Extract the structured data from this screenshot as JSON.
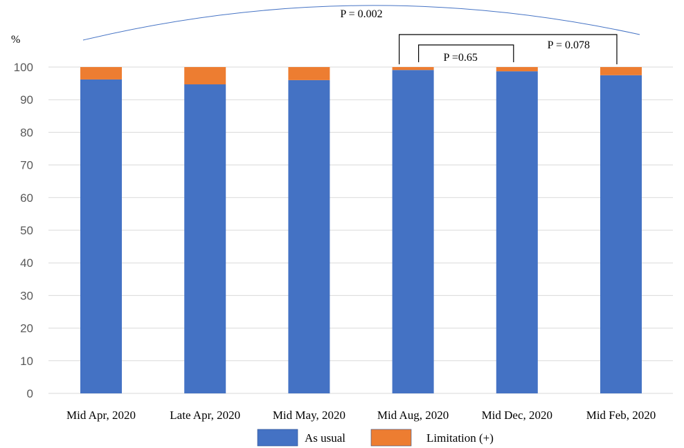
{
  "chart_data": {
    "type": "bar",
    "stacked": true,
    "title": "",
    "ylabel": "%",
    "xlabel": "",
    "ylim": [
      0,
      100
    ],
    "yticks": [
      0,
      10,
      20,
      30,
      40,
      50,
      60,
      70,
      80,
      90,
      100
    ],
    "grid": true,
    "legend_position": "bottom",
    "categories": [
      "Mid Apr, 2020",
      "Late Apr, 2020",
      "Mid May, 2020",
      "Mid Aug, 2020",
      "Mid Dec, 2020",
      "Mid Feb, 2020"
    ],
    "series": [
      {
        "name": "As usual",
        "color": "#4472C4",
        "values": [
          96.2,
          94.7,
          96.0,
          99.1,
          98.7,
          97.5
        ]
      },
      {
        "name": "Limitation (+)",
        "color": "#ED7D31",
        "values": [
          3.8,
          5.3,
          4.0,
          0.9,
          1.3,
          2.5
        ]
      }
    ],
    "annotations": [
      {
        "text": "P = 0.002",
        "type": "arc",
        "from": "Mid Apr, 2020",
        "to": "Mid Feb, 2020"
      },
      {
        "text": "P =0.65",
        "type": "bracket",
        "from": "Mid Aug, 2020",
        "to": "Mid Dec, 2020"
      },
      {
        "text": "P = 0.078",
        "type": "bracket",
        "from": "Mid Aug, 2020",
        "to": "Mid Feb, 2020"
      }
    ]
  }
}
